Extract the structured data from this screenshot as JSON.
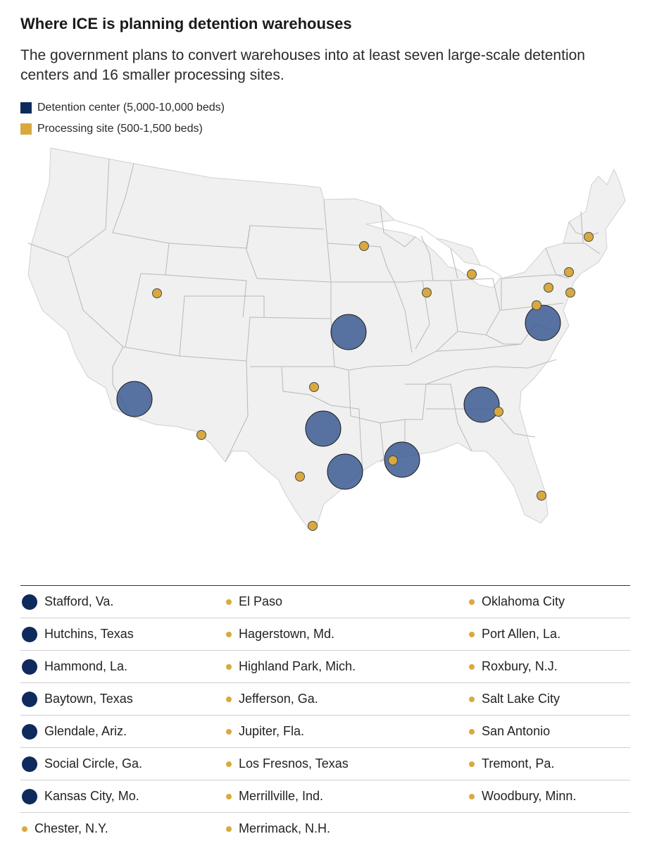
{
  "title": "Where ICE is planning detention warehouses",
  "subtitle": "The government plans to convert warehouses into at least seven large-scale detention centers and 16 smaller processing sites.",
  "legend": {
    "detention_label": "Detention center (5,000-10,000 beds)",
    "processing_label": "Processing site (500-1,500 beds)"
  },
  "colors": {
    "detention": "#0f2a5c",
    "detention_fill": "#3c5a92",
    "processing": "#d9a93f",
    "land": "#f0f0f0",
    "border": "#b8b8b8"
  },
  "detention_centers": [
    "Stafford, Va.",
    "Hutchins, Texas",
    "Hammond, La.",
    "Baytown, Texas",
    "Glendale, Ariz.",
    "Social Circle, Ga.",
    "Kansas City, Mo."
  ],
  "processing_sites": [
    "Chester, N.Y.",
    "El Paso",
    "Hagerstown, Md.",
    "Highland Park, Mich.",
    "Jefferson, Ga.",
    "Jupiter, Fla.",
    "Los Fresnos, Texas",
    "Merrillville, Ind.",
    "Merrimack, N.H.",
    "Oklahoma City",
    "Port Allen, La.",
    "Roxbury, N.J.",
    "Salt Lake City",
    "San Antonio",
    "Tremont, Pa.",
    "Woodbury, Minn."
  ],
  "list": {
    "rows": [
      {
        "a": "Stafford, Va.",
        "a_type": "detention",
        "b": "El Paso",
        "c": "Oklahoma City"
      },
      {
        "a": "Hutchins, Texas",
        "a_type": "detention",
        "b": "Hagerstown, Md.",
        "c": "Port Allen, La."
      },
      {
        "a": "Hammond, La.",
        "a_type": "detention",
        "b": "Highland Park, Mich.",
        "c": "Roxbury, N.J."
      },
      {
        "a": "Baytown, Texas",
        "a_type": "detention",
        "b": "Jefferson, Ga.",
        "c": "Salt Lake City"
      },
      {
        "a": "Glendale, Ariz.",
        "a_type": "detention",
        "b": "Jupiter, Fla.",
        "c": "San Antonio"
      },
      {
        "a": "Social Circle, Ga.",
        "a_type": "detention",
        "b": "Los Fresnos, Texas",
        "c": "Tremont, Pa."
      },
      {
        "a": "Kansas City, Mo.",
        "a_type": "detention",
        "b": "Merrillville, Ind.",
        "c": "Woodbury, Minn."
      },
      {
        "a": "Chester, N.Y.",
        "a_type": "processing",
        "b": "Merrimack, N.H.",
        "c": ""
      }
    ]
  }
}
